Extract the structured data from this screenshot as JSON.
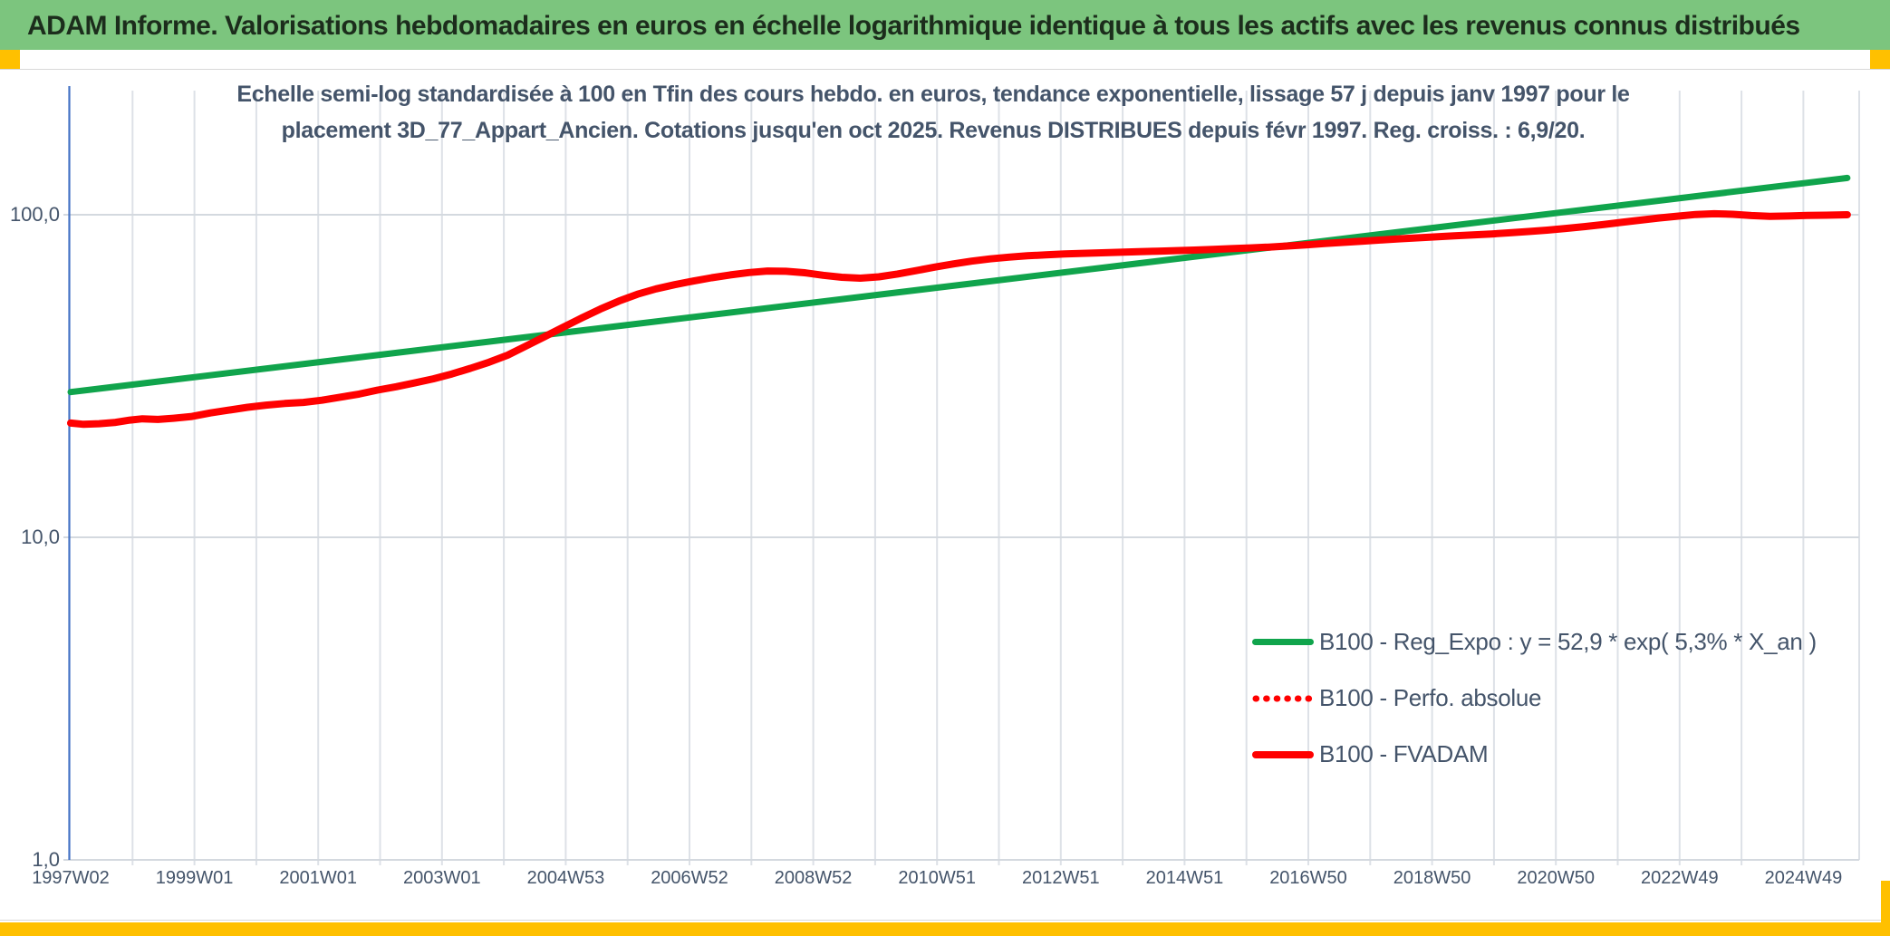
{
  "header": {
    "title": "ADAM Informe. Valorisations hebdomadaires en euros en échelle logarithmique identique à tous les actifs avec les revenus connus distribués",
    "bar_color": "#7cc57e",
    "corner_color": "#ffc000"
  },
  "chart_data": {
    "type": "line",
    "title_lines": [
      "Echelle semi-log standardisée à 100 en Tfin des cours hebdo. en euros, tendance exponentielle, lissage 57 j depuis janv 1997 pour le",
      "placement 3D_77_Appart_Ancien. Cotations jusqu'en oct 2025. Revenus DISTRIBUES depuis févr 1997. Reg. croiss. : 6,9/20."
    ],
    "y_axis": {
      "scale": "log10",
      "ticks": [
        "100,0",
        "10,0",
        "1,0"
      ],
      "tick_values": [
        100,
        10,
        1
      ],
      "range_shown": [
        1,
        250
      ],
      "axis_line_color": "#4472c4"
    },
    "x_axis": {
      "ticks": [
        "1997W02",
        "1999W01",
        "2001W01",
        "2003W01",
        "2004W53",
        "2006W52",
        "2008W52",
        "2010W51",
        "2012W51",
        "2014W51",
        "2016W50",
        "2018W50",
        "2020W50",
        "2022W49",
        "2024W49"
      ],
      "tick_interval_years": 2,
      "range_years": [
        1997.04,
        2026.5
      ]
    },
    "grid": {
      "vertical_every_years": 1,
      "horizontal_at": [
        1,
        10,
        100
      ]
    },
    "legend_position": "inside-bottom-right",
    "series": [
      {
        "name": "B100 - Reg_Expo : y = 52,9 * exp( 5,3% * X_an )",
        "color": "#10a44c",
        "style": "solid",
        "width": 7,
        "log_linear": true,
        "points": [
          [
            1997.04,
            28.2
          ],
          [
            2025.75,
            130.0
          ]
        ]
      },
      {
        "name": "B100 - Perfo. absolue",
        "color": "#ff0000",
        "style": "dotted",
        "width": 7,
        "coincides_with": "B100 - FVADAM",
        "points": []
      },
      {
        "name": "B100 - FVADAM",
        "color": "#ff0000",
        "style": "solid",
        "width": 8,
        "points": [
          [
            1997.04,
            22.6
          ],
          [
            1997.25,
            22.4
          ],
          [
            1997.5,
            22.5
          ],
          [
            1997.75,
            22.7
          ],
          [
            1998.0,
            23.1
          ],
          [
            1998.2,
            23.3
          ],
          [
            1998.45,
            23.2
          ],
          [
            1998.7,
            23.4
          ],
          [
            1999.0,
            23.7
          ],
          [
            1999.3,
            24.3
          ],
          [
            1999.6,
            24.8
          ],
          [
            1999.9,
            25.3
          ],
          [
            2000.2,
            25.7
          ],
          [
            2000.5,
            26.0
          ],
          [
            2000.8,
            26.2
          ],
          [
            2001.1,
            26.6
          ],
          [
            2001.4,
            27.2
          ],
          [
            2001.7,
            27.8
          ],
          [
            2002.0,
            28.6
          ],
          [
            2002.3,
            29.3
          ],
          [
            2002.6,
            30.1
          ],
          [
            2002.9,
            31.0
          ],
          [
            2003.2,
            32.1
          ],
          [
            2003.5,
            33.4
          ],
          [
            2003.8,
            34.9
          ],
          [
            2004.1,
            36.7
          ],
          [
            2004.4,
            39.2
          ],
          [
            2004.7,
            41.9
          ],
          [
            2005.0,
            44.8
          ],
          [
            2005.3,
            47.9
          ],
          [
            2005.6,
            51.0
          ],
          [
            2005.9,
            54.0
          ],
          [
            2006.2,
            56.7
          ],
          [
            2006.5,
            58.9
          ],
          [
            2006.8,
            60.7
          ],
          [
            2007.1,
            62.3
          ],
          [
            2007.4,
            63.8
          ],
          [
            2007.7,
            65.1
          ],
          [
            2008.0,
            66.2
          ],
          [
            2008.3,
            66.9
          ],
          [
            2008.6,
            66.8
          ],
          [
            2008.9,
            66.1
          ],
          [
            2009.2,
            64.9
          ],
          [
            2009.5,
            64.0
          ],
          [
            2009.8,
            63.6
          ],
          [
            2010.1,
            64.2
          ],
          [
            2010.4,
            65.5
          ],
          [
            2010.7,
            67.1
          ],
          [
            2011.0,
            68.8
          ],
          [
            2011.3,
            70.4
          ],
          [
            2011.6,
            71.8
          ],
          [
            2011.9,
            73.0
          ],
          [
            2012.2,
            73.9
          ],
          [
            2012.5,
            74.6
          ],
          [
            2012.8,
            75.1
          ],
          [
            2013.1,
            75.6
          ],
          [
            2013.4,
            75.9
          ],
          [
            2013.7,
            76.2
          ],
          [
            2014.0,
            76.5
          ],
          [
            2014.3,
            76.8
          ],
          [
            2014.6,
            77.1
          ],
          [
            2014.9,
            77.4
          ],
          [
            2015.2,
            77.7
          ],
          [
            2015.5,
            78.1
          ],
          [
            2015.8,
            78.5
          ],
          [
            2016.1,
            78.9
          ],
          [
            2016.4,
            79.4
          ],
          [
            2016.7,
            80.0
          ],
          [
            2017.0,
            80.7
          ],
          [
            2017.3,
            81.4
          ],
          [
            2017.6,
            82.1
          ],
          [
            2017.9,
            82.8
          ],
          [
            2018.2,
            83.5
          ],
          [
            2018.5,
            84.2
          ],
          [
            2018.8,
            84.8
          ],
          [
            2019.1,
            85.4
          ],
          [
            2019.4,
            86.0
          ],
          [
            2019.7,
            86.6
          ],
          [
            2020.0,
            87.2
          ],
          [
            2020.3,
            87.9
          ],
          [
            2020.6,
            88.7
          ],
          [
            2020.9,
            89.6
          ],
          [
            2021.2,
            90.7
          ],
          [
            2021.5,
            91.9
          ],
          [
            2021.8,
            93.2
          ],
          [
            2022.1,
            94.7
          ],
          [
            2022.4,
            96.2
          ],
          [
            2022.7,
            97.7
          ],
          [
            2023.0,
            99.0
          ],
          [
            2023.3,
            100.2
          ],
          [
            2023.6,
            100.7
          ],
          [
            2023.9,
            100.3
          ],
          [
            2024.2,
            99.4
          ],
          [
            2024.5,
            98.9
          ],
          [
            2024.8,
            99.1
          ],
          [
            2025.1,
            99.5
          ],
          [
            2025.4,
            99.7
          ],
          [
            2025.75,
            100.0
          ]
        ]
      }
    ],
    "grid_color_vertical": "#dde1e7",
    "grid_color_horizontal": "#d4d9df"
  }
}
